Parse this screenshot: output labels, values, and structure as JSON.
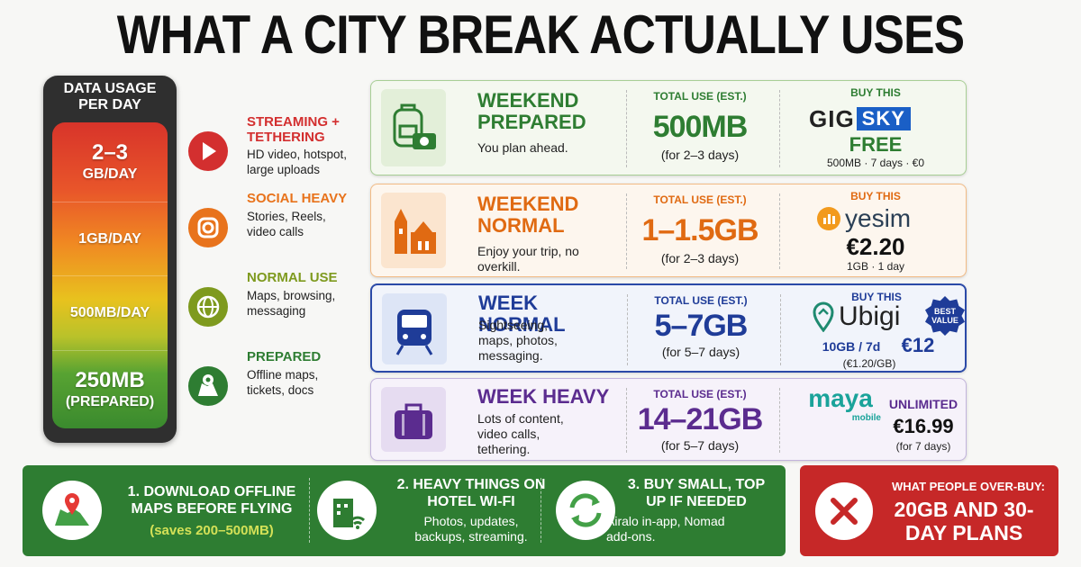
{
  "title": "WHAT A CITY BREAK ACTUALLY USES",
  "gauge": {
    "title": "DATA USAGE PER DAY",
    "levels": [
      {
        "lines": [
          "2–3",
          "GB/DAY"
        ]
      },
      {
        "lines": [
          "1GB/DAY"
        ]
      },
      {
        "lines": [
          "500MB/DAY"
        ]
      },
      {
        "lines": [
          "250MB",
          "(PREPARED)"
        ]
      }
    ]
  },
  "usage_types": [
    {
      "title": "STREAMING + TETHERING",
      "description": "HD video, hotspot, large uploads"
    },
    {
      "title": "SOCIAL HEAVY",
      "description": "Stories, Reels, video calls"
    },
    {
      "title": "NORMAL USE",
      "description": "Maps, browsing, messaging"
    },
    {
      "title": "PREPARED",
      "description": "Offline maps, tickets, docs"
    }
  ],
  "plans": [
    {
      "name": "WEEKEND PREPARED",
      "tagline": "You plan ahead.",
      "total_label": "TOTAL USE (EST.)",
      "total": "500MB",
      "period": "(for 2–3 days)",
      "buy_label": "BUY THIS",
      "brand": [
        "GIG",
        "SKY"
      ],
      "price": "FREE",
      "details": "500MB · 7 days · €0"
    },
    {
      "name": "WEEKEND NORMAL",
      "tagline": "Enjoy your trip, no overkill.",
      "total_label": "TOTAL USE (EST.)",
      "total": "1–1.5GB",
      "period": "(for 2–3 days)",
      "buy_label": "BUY THIS",
      "brand": [
        "yesim"
      ],
      "price": "€2.20",
      "details": "1GB · 1 day"
    },
    {
      "name": "WEEK NORMAL",
      "tagline": "Sightseeing, maps, photos, messaging.",
      "total_label": "TOTAL USE (EST.)",
      "total": "5–7GB",
      "period": "(for 5–7 days)",
      "buy_label": "BUY THIS",
      "brand": [
        "Ubigi"
      ],
      "badge": "BEST VALUE",
      "plan": "10GB / 7d",
      "price": "€12",
      "details": "(€1.20/GB)"
    },
    {
      "name": "WEEK HEAVY",
      "tagline": "Lots of content, video calls, tethering.",
      "total_label": "TOTAL USE (EST.)",
      "total": "14–21GB",
      "period": "(for 5–7 days)",
      "brand": [
        "maya",
        "mobile"
      ],
      "plan": "UNLIMITED",
      "price": "€16.99",
      "details": "(for 7 days)"
    }
  ],
  "tips": [
    {
      "title": "1. DOWNLOAD OFFLINE MAPS BEFORE FLYING",
      "note": "(saves 200–500MB)"
    },
    {
      "title": "2. HEAVY THINGS ON HOTEL WI-FI",
      "icon_label": "HOTEL",
      "description": "Photos, updates, backups, streaming."
    },
    {
      "title": "3. BUY SMALL, TOP UP IF NEEDED",
      "description": "Airalo in-app, Nomad add-ons."
    }
  ],
  "overbuy": {
    "label": "WHAT PEOPLE OVER-BUY:",
    "text": "20GB AND 30-DAY PLANS"
  }
}
